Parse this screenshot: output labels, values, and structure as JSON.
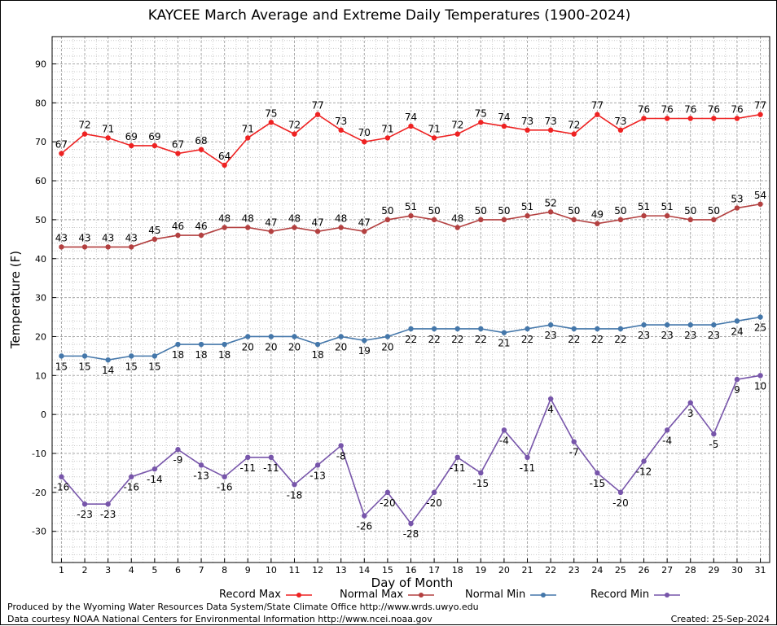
{
  "chart_data": {
    "type": "line",
    "title": "KAYCEE March Average and Extreme Daily Temperatures (1900-2024)",
    "xlabel": "Day of Month",
    "ylabel": "Temperature (F)",
    "ylim": [
      -38,
      97
    ],
    "yticks": [
      -30,
      -20,
      -10,
      0,
      10,
      20,
      30,
      40,
      50,
      60,
      70,
      80,
      90
    ],
    "x": [
      1,
      2,
      3,
      4,
      5,
      6,
      7,
      8,
      9,
      10,
      11,
      12,
      13,
      14,
      15,
      16,
      17,
      18,
      19,
      20,
      21,
      22,
      23,
      24,
      25,
      26,
      27,
      28,
      29,
      30,
      31
    ],
    "grid": true,
    "legend_position": "bottom",
    "series": [
      {
        "name": "Record Max",
        "color": "#ee2222",
        "label_pos": "above",
        "values": [
          67,
          72,
          71,
          69,
          69,
          67,
          68,
          64,
          71,
          75,
          72,
          77,
          73,
          70,
          71,
          74,
          71,
          72,
          75,
          74,
          73,
          73,
          72,
          77,
          73,
          76,
          76,
          76,
          76,
          76,
          77
        ]
      },
      {
        "name": "Normal Max",
        "color": "#b34040",
        "label_pos": "above",
        "values": [
          43,
          43,
          43,
          43,
          45,
          46,
          46,
          48,
          48,
          47,
          48,
          47,
          48,
          47,
          50,
          51,
          50,
          48,
          50,
          50,
          51,
          52,
          50,
          49,
          50,
          51,
          51,
          50,
          50,
          53,
          54
        ]
      },
      {
        "name": "Normal Min",
        "color": "#4477aa",
        "label_pos": "below",
        "values": [
          15,
          15,
          14,
          15,
          15,
          18,
          18,
          18,
          20,
          20,
          20,
          18,
          20,
          19,
          20,
          22,
          22,
          22,
          22,
          21,
          22,
          23,
          22,
          22,
          22,
          23,
          23,
          23,
          23,
          24,
          25
        ]
      },
      {
        "name": "Record Min",
        "color": "#7755aa",
        "label_pos": "below",
        "values": [
          -16,
          -23,
          -23,
          -16,
          -14,
          -9,
          -13,
          -16,
          -11,
          -11,
          -18,
          -13,
          -8,
          -26,
          -20,
          -28,
          -20,
          -11,
          -15,
          -4,
          -11,
          4,
          -7,
          -15,
          -20,
          -12,
          -4,
          3,
          -5,
          9,
          10
        ]
      }
    ]
  },
  "footer": {
    "produced_by": "Produced by the Wyoming Water Resources Data System/State Climate Office http://www.wrds.uwyo.edu",
    "courtesy": "Data courtesy NOAA National Centers for Environmental Information http://www.ncei.noaa.gov",
    "created": "Created: 25-Sep-2024"
  }
}
